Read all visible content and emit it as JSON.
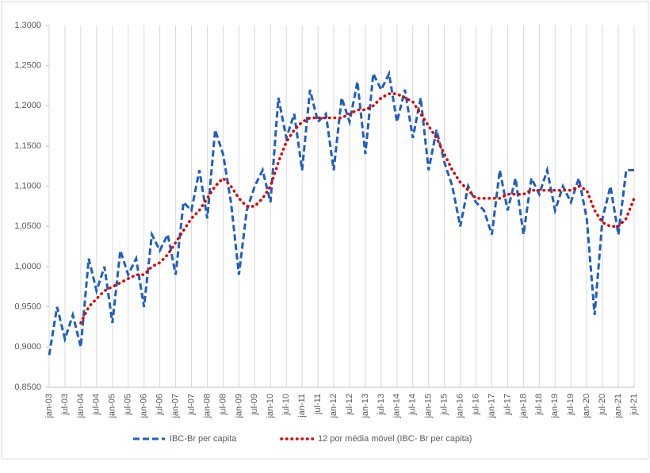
{
  "chart_data": {
    "type": "line",
    "categories": [
      "jan-03",
      null,
      "jul-03",
      null,
      "jan-04",
      null,
      "jul-04",
      null,
      "jan-05",
      null,
      "jul-05",
      null,
      "jan-06",
      null,
      "jul-06",
      null,
      "jan-07",
      null,
      "jul-07",
      null,
      "jan-08",
      null,
      "jul-08",
      null,
      "jan-09",
      null,
      "jul-09",
      null,
      "jan-10",
      null,
      "jul-10",
      null,
      "jan-11",
      null,
      "jul-11",
      null,
      "jan-12",
      null,
      "jul-12",
      null,
      "jan-13",
      null,
      "jul-13",
      null,
      "jan-14",
      null,
      "jul-14",
      null,
      "jan-15",
      null,
      "jul-15",
      null,
      "jan-16",
      null,
      "jul-16",
      null,
      "jan-17",
      null,
      "jul-17",
      null,
      "jan-18",
      null,
      "jul-18",
      null,
      "jan-19",
      null,
      "jul-19",
      null,
      "jan-20",
      null,
      "jul-20",
      null,
      "jan-21",
      null,
      "jul-21"
    ],
    "series": [
      {
        "name": "IBC-Br per capita",
        "color": "#1f5fbf",
        "values": [
          0.89,
          0.95,
          0.91,
          0.94,
          0.9,
          1.01,
          0.97,
          1.0,
          0.93,
          1.02,
          0.99,
          1.01,
          0.95,
          1.04,
          1.02,
          1.04,
          0.99,
          1.08,
          1.07,
          1.12,
          1.06,
          1.17,
          1.14,
          1.08,
          0.99,
          1.07,
          1.1,
          1.12,
          1.08,
          1.21,
          1.16,
          1.19,
          1.12,
          1.22,
          1.18,
          1.19,
          1.12,
          1.21,
          1.18,
          1.23,
          1.14,
          1.24,
          1.22,
          1.24,
          1.18,
          1.22,
          1.16,
          1.21,
          1.12,
          1.17,
          1.13,
          1.1,
          1.05,
          1.1,
          1.08,
          1.07,
          1.04,
          1.12,
          1.07,
          1.11,
          1.04,
          1.11,
          1.09,
          1.12,
          1.07,
          1.1,
          1.08,
          1.11,
          1.06,
          0.94,
          1.06,
          1.1,
          1.04,
          1.12,
          1.12
        ]
      },
      {
        "name": "12 por média móvel (IBC- Br per capita)",
        "color": "#e00000",
        "values": [
          null,
          null,
          null,
          null,
          0.93,
          0.95,
          0.96,
          0.97,
          0.975,
          0.98,
          0.985,
          0.99,
          0.99,
          1.0,
          1.005,
          1.015,
          1.03,
          1.045,
          1.06,
          1.07,
          1.085,
          1.1,
          1.11,
          1.1,
          1.085,
          1.075,
          1.075,
          1.085,
          1.1,
          1.13,
          1.155,
          1.17,
          1.18,
          1.185,
          1.185,
          1.185,
          1.185,
          1.185,
          1.19,
          1.195,
          1.195,
          1.2,
          1.21,
          1.215,
          1.215,
          1.21,
          1.205,
          1.19,
          1.175,
          1.16,
          1.14,
          1.12,
          1.105,
          1.095,
          1.085,
          1.085,
          1.085,
          1.085,
          1.09,
          1.09,
          1.09,
          1.095,
          1.095,
          1.095,
          1.095,
          1.095,
          1.095,
          1.1,
          1.095,
          1.07,
          1.055,
          1.05,
          1.05,
          1.06,
          1.085
        ]
      }
    ],
    "ylim": [
      0.85,
      1.3
    ],
    "yticks": [
      {
        "value": 0.85,
        "label": "0,8500"
      },
      {
        "value": 0.9,
        "label": "0,9000"
      },
      {
        "value": 0.95,
        "label": "0,9500"
      },
      {
        "value": 1.0,
        "label": "1,0000"
      },
      {
        "value": 1.05,
        "label": "1,0500"
      },
      {
        "value": 1.1,
        "label": "1,1000"
      },
      {
        "value": 1.15,
        "label": "1,1500"
      },
      {
        "value": 1.2,
        "label": "1,2000"
      },
      {
        "value": 1.25,
        "label": "1,2500"
      },
      {
        "value": 1.3,
        "label": "1,3000"
      }
    ],
    "grid": true,
    "legend": "bottom"
  }
}
